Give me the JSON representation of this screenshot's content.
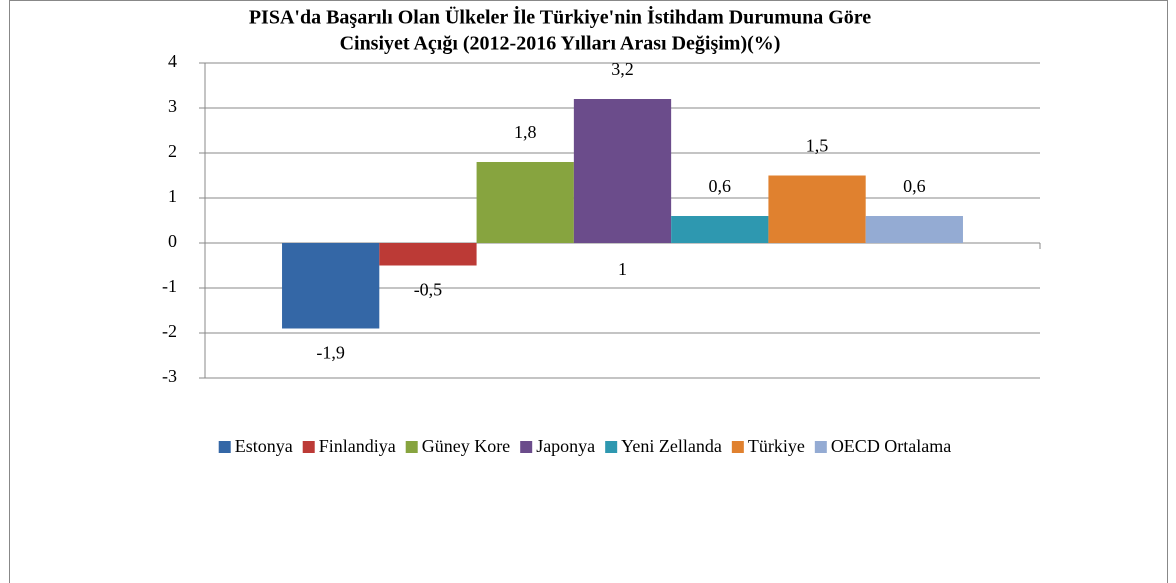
{
  "chart_data": {
    "type": "bar",
    "title": [
      "PISA'da Başarılı Olan Ülkeler İle Türkiye'nin  İstihdam Durumuna Göre",
      "Cinsiyet Açığı (2012-2016 Yılları  Arası Değişim)(%)"
    ],
    "categories": [
      "1"
    ],
    "series": [
      {
        "name": "Estonya",
        "color": "#3467a6",
        "values": [
          -1.9
        ],
        "value_labels": [
          "-1,9"
        ]
      },
      {
        "name": "Finlandiya",
        "color": "#bc3a36",
        "values": [
          -0.5
        ],
        "value_labels": [
          "-0,5"
        ]
      },
      {
        "name": "Güney Kore",
        "color": "#87a43f",
        "values": [
          1.8
        ],
        "value_labels": [
          "1,8"
        ]
      },
      {
        "name": "Japonya",
        "color": "#6b4c8b",
        "values": [
          3.2
        ],
        "value_labels": [
          "3,2"
        ]
      },
      {
        "name": "Yeni Zellanda",
        "color": "#2e98b0",
        "values": [
          0.6
        ],
        "value_labels": [
          "0,6"
        ]
      },
      {
        "name": "Türkiye",
        "color": "#e0812f",
        "values": [
          1.5
        ],
        "value_labels": [
          "1,5"
        ]
      },
      {
        "name": "OECD Ortalama",
        "color": "#94abd3",
        "values": [
          0.6
        ],
        "value_labels": [
          "0,6"
        ]
      }
    ],
    "ylim": [
      -3,
      4
    ],
    "yticks": [
      -3,
      -2,
      -1,
      0,
      1,
      2,
      3,
      4
    ],
    "grid": true,
    "legend": "bottom"
  }
}
